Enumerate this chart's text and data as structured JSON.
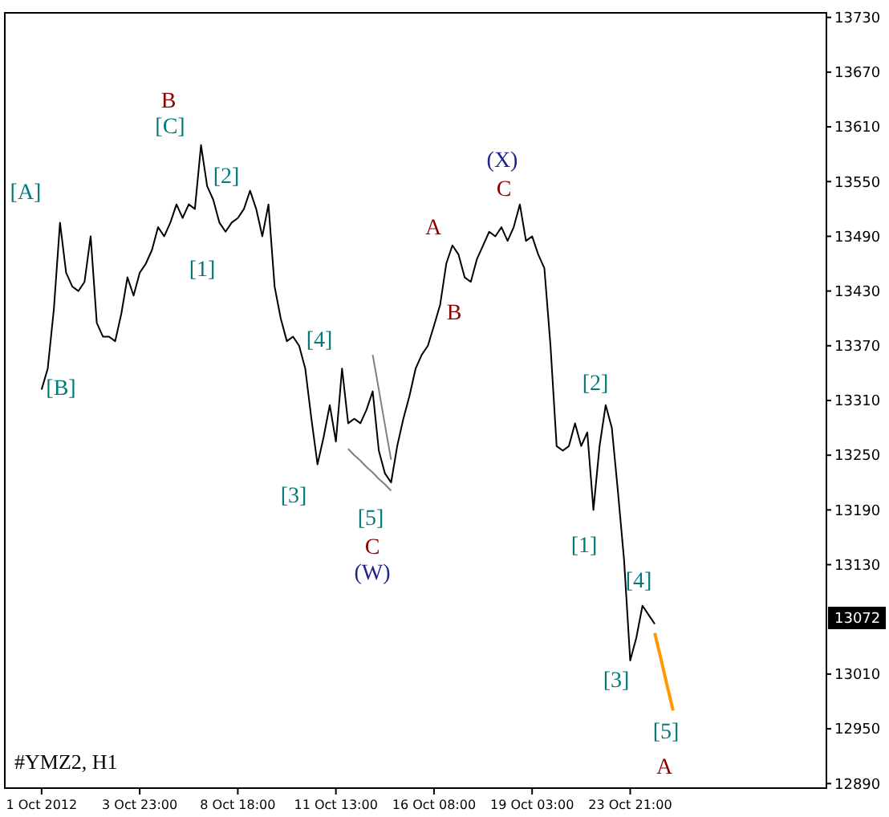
{
  "chart_data": {
    "type": "line",
    "title": "#YMZ2, H1",
    "ylim": [
      12885,
      13735
    ],
    "categories": [
      "1 Oct 2012",
      null,
      null,
      null,
      null,
      null,
      null,
      null,
      null,
      null,
      null,
      null,
      null,
      null,
      null,
      null,
      "3 Oct 23:00",
      null,
      null,
      null,
      null,
      null,
      null,
      null,
      null,
      null,
      null,
      null,
      null,
      null,
      null,
      null,
      "8 Oct 18:00",
      null,
      null,
      null,
      null,
      null,
      null,
      null,
      null,
      null,
      null,
      null,
      null,
      null,
      null,
      null,
      "11 Oct 13:00",
      null,
      null,
      null,
      null,
      null,
      null,
      null,
      null,
      null,
      null,
      null,
      null,
      null,
      null,
      null,
      "16 Oct 08:00",
      null,
      null,
      null,
      null,
      null,
      null,
      null,
      null,
      null,
      null,
      null,
      null,
      null,
      null,
      null,
      "19 Oct 03:00",
      null,
      null,
      null,
      null,
      null,
      null,
      null,
      null,
      null,
      null,
      null,
      null,
      null,
      null,
      null,
      "23 Oct 21:00",
      null,
      null,
      null,
      null,
      null,
      null,
      null,
      null,
      null,
      null,
      null,
      null,
      null,
      null,
      null,
      null,
      null,
      null,
      null,
      null,
      null,
      null,
      null,
      null,
      null,
      null,
      null,
      null,
      null,
      null,
      null
    ],
    "yticks": [
      12890,
      12950,
      13010,
      13130,
      13190,
      13250,
      13310,
      13370,
      13430,
      13490,
      13550,
      13610,
      13670,
      13730
    ],
    "series": [
      {
        "color": "#000000",
        "values": [
          13322,
          13345,
          13410,
          13505,
          13450,
          13435,
          13430,
          13440,
          13490,
          13395,
          13380,
          13380,
          13375,
          13405,
          13445,
          13425,
          13450,
          13460,
          13475,
          13500,
          13490,
          13505,
          13525,
          13510,
          13525,
          13520,
          13590,
          13545,
          13530,
          13505,
          13495,
          13505,
          13510,
          13520,
          13540,
          13520,
          13490,
          13525,
          13435,
          13400,
          13375,
          13380,
          13370,
          13345,
          13290,
          13240,
          13270,
          13305,
          13265,
          13345,
          13285,
          13290,
          13285,
          13300,
          13320,
          13255,
          13230,
          13220,
          13260,
          13290,
          13315,
          13345,
          13360,
          13370,
          13392,
          13415,
          13460,
          13480,
          13470,
          13445,
          13440,
          13465,
          13480,
          13495,
          13490,
          13500,
          13485,
          13500,
          13525,
          13485,
          13490,
          13470,
          13455,
          13370,
          13260,
          13255,
          13260,
          13285,
          13260,
          13275,
          13190,
          13260,
          13305,
          13280,
          13210,
          13135,
          13025,
          13050,
          13085,
          13075,
          13065,
          null,
          null,
          null,
          null,
          null,
          null,
          null,
          null,
          null,
          null,
          null,
          null,
          null,
          null,
          null,
          null,
          null,
          null,
          null,
          null,
          null,
          null,
          null,
          null,
          null,
          null,
          null
        ]
      },
      {
        "color": "#808080",
        "values": [
          null,
          null,
          null,
          null,
          null,
          null,
          null,
          null,
          null,
          null,
          null,
          null,
          null,
          null,
          null,
          null,
          null,
          null,
          null,
          null,
          null,
          null,
          null,
          null,
          null,
          null,
          null,
          null,
          null,
          null,
          null,
          null,
          null,
          null,
          null,
          null,
          null,
          null,
          null,
          null,
          null,
          null,
          null,
          null,
          null,
          null,
          null,
          null,
          null,
          null,
          13257,
          13250,
          13244,
          13237,
          13231,
          13224,
          13218,
          13211,
          null,
          null,
          null,
          null,
          null,
          null,
          null,
          null,
          null,
          null,
          null,
          null,
          null,
          null,
          null,
          null,
          null,
          null,
          null,
          null,
          null,
          null,
          null,
          null,
          null,
          null,
          null,
          null,
          null,
          null,
          null,
          null,
          null,
          null,
          null,
          null,
          null,
          null,
          null,
          null,
          null,
          null,
          null,
          null,
          null,
          null,
          null,
          null,
          null,
          null,
          null,
          null,
          null,
          null,
          null,
          null,
          null,
          null,
          null,
          null,
          null,
          null,
          null,
          null,
          null,
          null,
          null,
          null,
          null,
          null
        ]
      },
      {
        "color": "#808080",
        "values": [
          null,
          null,
          null,
          null,
          null,
          null,
          null,
          null,
          null,
          null,
          null,
          null,
          null,
          null,
          null,
          null,
          null,
          null,
          null,
          null,
          null,
          null,
          null,
          null,
          null,
          null,
          null,
          null,
          null,
          null,
          null,
          null,
          null,
          null,
          null,
          null,
          null,
          null,
          null,
          null,
          null,
          null,
          null,
          null,
          null,
          null,
          null,
          null,
          null,
          null,
          null,
          null,
          null,
          null,
          13360,
          13322,
          13283,
          13245,
          null,
          null,
          null,
          null,
          null,
          null,
          null,
          null,
          null,
          null,
          null,
          null,
          null,
          null,
          null,
          null,
          null,
          null,
          null,
          null,
          null,
          null,
          null,
          null,
          null,
          null,
          null,
          null,
          null,
          null,
          null,
          null,
          null,
          null,
          null,
          null,
          null,
          null,
          null,
          null,
          null,
          null,
          null,
          null,
          null,
          null,
          null,
          null,
          null,
          null,
          null,
          null,
          null,
          null,
          null,
          null,
          null,
          null,
          null,
          null,
          null,
          null,
          null,
          null,
          null,
          null,
          null,
          null,
          null,
          null
        ]
      },
      {
        "color": "#ff9900",
        "values": [
          null,
          null,
          null,
          null,
          null,
          null,
          null,
          null,
          null,
          null,
          null,
          null,
          null,
          null,
          null,
          null,
          null,
          null,
          null,
          null,
          null,
          null,
          null,
          null,
          null,
          null,
          null,
          null,
          null,
          null,
          null,
          null,
          null,
          null,
          null,
          null,
          null,
          null,
          null,
          null,
          null,
          null,
          null,
          null,
          null,
          null,
          null,
          null,
          null,
          null,
          null,
          null,
          null,
          null,
          null,
          null,
          null,
          null,
          null,
          null,
          null,
          null,
          null,
          null,
          null,
          null,
          null,
          null,
          null,
          null,
          null,
          null,
          null,
          null,
          null,
          null,
          null,
          null,
          null,
          null,
          null,
          null,
          null,
          null,
          null,
          null,
          null,
          null,
          null,
          null,
          null,
          null,
          null,
          null,
          null,
          null,
          null,
          null,
          null,
          null,
          13055,
          13027,
          12998,
          12970,
          null,
          null,
          null,
          null,
          null,
          null,
          null,
          null,
          null,
          null,
          null,
          null,
          null,
          null,
          null,
          null,
          null,
          null,
          null,
          null,
          null,
          null,
          null,
          null
        ]
      }
    ],
    "annotations": [
      "[A]",
      "[B]",
      "B",
      "[C]",
      "[2]",
      "[1]",
      "[4]",
      "[3]",
      "[5]",
      "C",
      "(W)",
      "A",
      "B",
      "(X)",
      "C",
      "[2]",
      "[1]",
      "[4]",
      "[3]",
      "[5]",
      "A",
      "13072"
    ]
  }
}
